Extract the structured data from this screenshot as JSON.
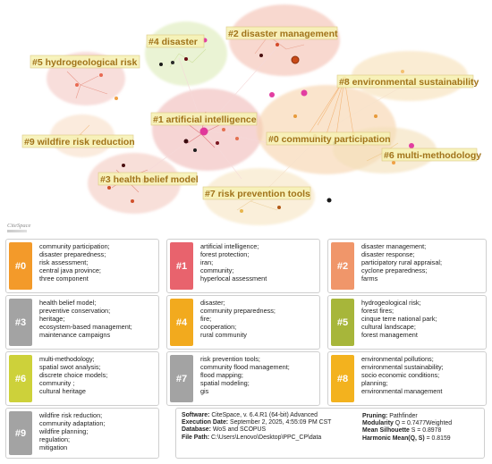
{
  "title": "",
  "software_logo": "CiteSpace",
  "network": {
    "labels": [
      {
        "id": "c4",
        "text": "#4 disaster"
      },
      {
        "id": "c2",
        "text": "#2 disaster management"
      },
      {
        "id": "c5",
        "text": "#5 hydrogeological risk"
      },
      {
        "id": "c8",
        "text": "#8 environmental sustainability"
      },
      {
        "id": "c1",
        "text": "#1 artificial intelligence"
      },
      {
        "id": "c0",
        "text": "#0 community participation"
      },
      {
        "id": "c9",
        "text": "#9 wildfire risk reduction"
      },
      {
        "id": "c6",
        "text": "#6 multi-methodology"
      },
      {
        "id": "c3",
        "text": "#3 health belief model"
      },
      {
        "id": "c7",
        "text": "#7 risk prevention tools"
      }
    ]
  },
  "clusters": [
    {
      "id": "#0",
      "color": "#f39a2a",
      "terms": [
        "community participation;",
        "disaster preparedness;",
        "risk assessment;",
        "central java province;",
        "three component"
      ]
    },
    {
      "id": "#1",
      "color": "#e8636d",
      "terms": [
        "artificial intelligence;",
        "forest protection;",
        "iran;",
        "community;",
        "hyperlocal assessment"
      ]
    },
    {
      "id": "#2",
      "color": "#f0966a",
      "terms": [
        "disaster management;",
        "disaster response;",
        "participatory rural appraisal;",
        "cyclone preparedness;",
        "farms"
      ]
    },
    {
      "id": "#3",
      "color": "#a3a3a3",
      "terms": [
        "health belief model;",
        "preventive conservation;",
        "heritage;",
        "ecosystem-based management;",
        "maintenance campaigns"
      ]
    },
    {
      "id": "#4",
      "color": "#f2aa1e",
      "terms": [
        "disaster;",
        "community preparedness;",
        "fire;",
        "cooperation;",
        "rural community"
      ]
    },
    {
      "id": "#5",
      "color": "#a7b63a",
      "terms": [
        "hydrogeological risk;",
        "forest fires;",
        "cinque terre national park;",
        "cultural landscape;",
        "forest management"
      ]
    },
    {
      "id": "#6",
      "color": "#cdd13a",
      "terms": [
        "multi-methodology;",
        "spatial swot analysis;",
        "discrete choice models;",
        "community ;",
        "cultural heritage"
      ]
    },
    {
      "id": "#7",
      "color": "#a3a3a3",
      "terms": [
        "risk prevention tools;",
        "community flood management;",
        "flood mapping;",
        "spatial modeling;",
        "gis"
      ]
    },
    {
      "id": "#8",
      "color": "#f3b21e",
      "terms": [
        "environmental pollutions;",
        "environmental sustainability;",
        "socio economic conditions;",
        "planning;",
        "environmental management"
      ]
    },
    {
      "id": "#9",
      "color": "#a3a3a3",
      "terms": [
        "wildfire risk reduction;",
        "community adaptation;",
        "wildfire planning;",
        "regulation;",
        "mitigation"
      ]
    }
  ],
  "info": {
    "software_label": "Software:",
    "software_value": "CiteSpace, v. 6.4.R1 (64-bit) Advanced",
    "date_label": "Execution Date:",
    "date_value": "September 2, 2025, 4:55:09 PM CST",
    "database_label": "Database:",
    "database_value": "WoS and SCOPUS",
    "path_label": "File Path:",
    "path_value": "C:\\Users\\Lenovo\\Desktop\\PPC_CP\\data",
    "pruning_label": "Pruning:",
    "pruning_value": "Pathfinder",
    "modularity_label": "Modularity",
    "modularity_value": "Q = 0.7477Weighted",
    "silhouette_label": "Mean Silhouette",
    "silhouette_value": "S = 0.8978",
    "harmonic_label": "Harmonic Mean(Q, S)",
    "harmonic_value": "= 0.8159"
  }
}
